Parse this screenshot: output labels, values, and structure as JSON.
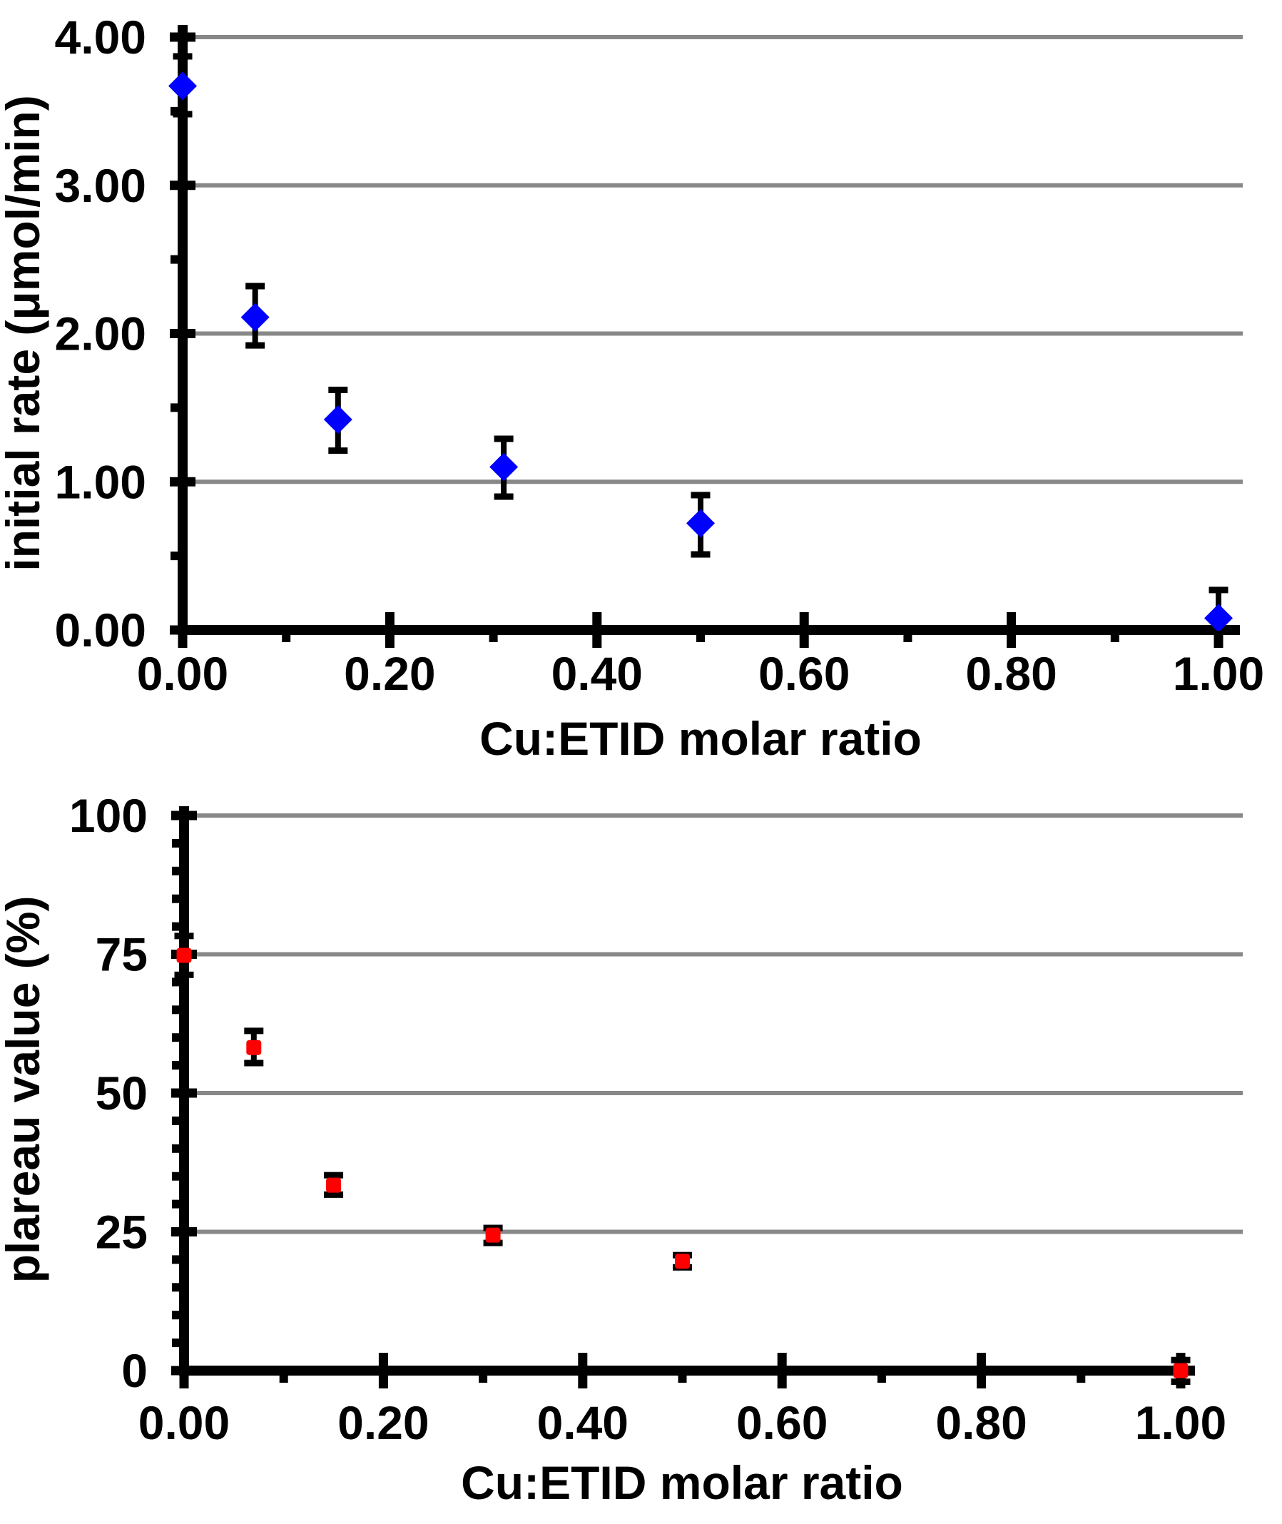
{
  "page": {
    "background": "#ffffff"
  },
  "chart_data": [
    {
      "type": "scatter",
      "title": "",
      "xlabel": "Cu:ETID molar ratio",
      "ylabel": "initial rate (μmol/min)",
      "xlim": [
        0.0,
        1.0
      ],
      "ylim": [
        0.0,
        4.0
      ],
      "grid": "horizontal-major",
      "gridline_color": "#888888",
      "axis_color": "#000000",
      "x_major_ticks": [
        0.0,
        0.2,
        0.4,
        0.6,
        0.8,
        1.0
      ],
      "x_tick_labels": [
        "0.00",
        "0.20",
        "0.40",
        "0.60",
        "0.80",
        "1.00"
      ],
      "x_minor_step": 0.1,
      "y_major_ticks": [
        0,
        1,
        2,
        3,
        4
      ],
      "y_tick_labels": [
        "0.00",
        "1.00",
        "2.00",
        "3.00",
        "4.00"
      ],
      "y_minor_step": 0.5,
      "series": [
        {
          "name": "initial rate",
          "marker": "diamond",
          "marker_color": "#0000FE",
          "error_bar_color": "#000000",
          "points": [
            {
              "x": 0.0,
              "y": 3.67,
              "err_up": 0.2,
              "err_down": 0.19
            },
            {
              "x": 0.07,
              "y": 2.11,
              "err_up": 0.21,
              "err_down": 0.19
            },
            {
              "x": 0.15,
              "y": 1.42,
              "err_up": 0.2,
              "err_down": 0.21
            },
            {
              "x": 0.31,
              "y": 1.1,
              "err_up": 0.19,
              "err_down": 0.2
            },
            {
              "x": 0.5,
              "y": 0.72,
              "err_up": 0.19,
              "err_down": 0.21
            },
            {
              "x": 1.0,
              "y": 0.08,
              "err_up": 0.19,
              "err_down": 0.08
            }
          ]
        }
      ]
    },
    {
      "type": "scatter",
      "title": "",
      "xlabel": "Cu:ETID molar ratio",
      "ylabel": "plareau value (%)",
      "xlim": [
        0.0,
        1.0
      ],
      "ylim": [
        0,
        100
      ],
      "grid": "horizontal-major",
      "gridline_color": "#888888",
      "axis_color": "#000000",
      "x_major_ticks": [
        0.0,
        0.2,
        0.4,
        0.6,
        0.8,
        1.0
      ],
      "x_tick_labels": [
        "0.00",
        "0.20",
        "0.40",
        "0.60",
        "0.80",
        "1.00"
      ],
      "x_minor_step": 0.1,
      "y_major_ticks": [
        0,
        25,
        50,
        75,
        100
      ],
      "y_tick_labels": [
        "0",
        "25",
        "50",
        "75",
        "100"
      ],
      "y_minor_step": 5,
      "series": [
        {
          "name": "plateau value",
          "marker": "square",
          "marker_color": "#FF0000",
          "error_bar_color": "#000000",
          "points": [
            {
              "x": 0.0,
              "y": 74.8,
              "err_up": 3.5,
              "err_down": 3.5
            },
            {
              "x": 0.07,
              "y": 58.2,
              "err_up": 3.0,
              "err_down": 2.8
            },
            {
              "x": 0.15,
              "y": 33.4,
              "err_up": 1.8,
              "err_down": 1.7
            },
            {
              "x": 0.31,
              "y": 24.4,
              "err_up": 1.3,
              "err_down": 1.4
            },
            {
              "x": 0.5,
              "y": 19.7,
              "err_up": 1.1,
              "err_down": 1.1
            },
            {
              "x": 1.0,
              "y": 0.0,
              "err_up": 1.9,
              "err_down": 2.0
            }
          ]
        }
      ]
    }
  ]
}
